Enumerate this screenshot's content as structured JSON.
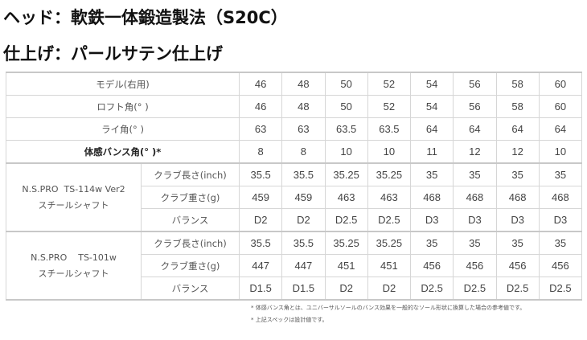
{
  "heading": {
    "head": "ヘッド：軟鉄一体鍛造製法（S20C）",
    "finish": "仕上げ：パールサテン仕上げ"
  },
  "table": {
    "top_rows": [
      {
        "label": "モデル(右用)",
        "values": [
          "46",
          "48",
          "50",
          "52",
          "54",
          "56",
          "58",
          "60"
        ]
      },
      {
        "label": "ロフト角(° )",
        "values": [
          "46",
          "48",
          "50",
          "52",
          "54",
          "56",
          "58",
          "60"
        ]
      },
      {
        "label": "ライ角(° )",
        "values": [
          "63",
          "63",
          "63.5",
          "63.5",
          "64",
          "64",
          "64",
          "64"
        ]
      },
      {
        "label": "体感バンス角(° )*",
        "values": [
          "8",
          "8",
          "10",
          "10",
          "11",
          "12",
          "12",
          "10"
        ]
      }
    ],
    "shafts": [
      {
        "name": "N.S.PRO  TS-114w Ver2",
        "type": "スチールシャフト",
        "rows": [
          {
            "label": "クラブ長さ(inch)",
            "values": [
              "35.5",
              "35.5",
              "35.25",
              "35.25",
              "35",
              "35",
              "35",
              "35"
            ]
          },
          {
            "label": "クラブ重さ(g)",
            "values": [
              "459",
              "459",
              "463",
              "463",
              "468",
              "468",
              "468",
              "468"
            ]
          },
          {
            "label": "バランス",
            "values": [
              "D2",
              "D2",
              "D2.5",
              "D2.5",
              "D3",
              "D3",
              "D3",
              "D3"
            ]
          }
        ]
      },
      {
        "name": "N.S.PRO    TS-101w",
        "type": "スチールシャフト",
        "rows": [
          {
            "label": "クラブ長さ(inch)",
            "values": [
              "35.5",
              "35.5",
              "35.25",
              "35.25",
              "35",
              "35",
              "35",
              "35"
            ]
          },
          {
            "label": "クラブ重さ(g)",
            "values": [
              "447",
              "447",
              "451",
              "451",
              "456",
              "456",
              "456",
              "456"
            ]
          },
          {
            "label": "バランス",
            "values": [
              "D1.5",
              "D1.5",
              "D2",
              "D2",
              "D2.5",
              "D2.5",
              "D2.5",
              "D2.5"
            ]
          }
        ]
      }
    ]
  },
  "notes": [
    "* 体感バンス角とは、ユニバーサルソールのバンス効果を一般的なソール形状に換算した場合の参考値です。",
    "* 上記スペックは設計値です。"
  ]
}
